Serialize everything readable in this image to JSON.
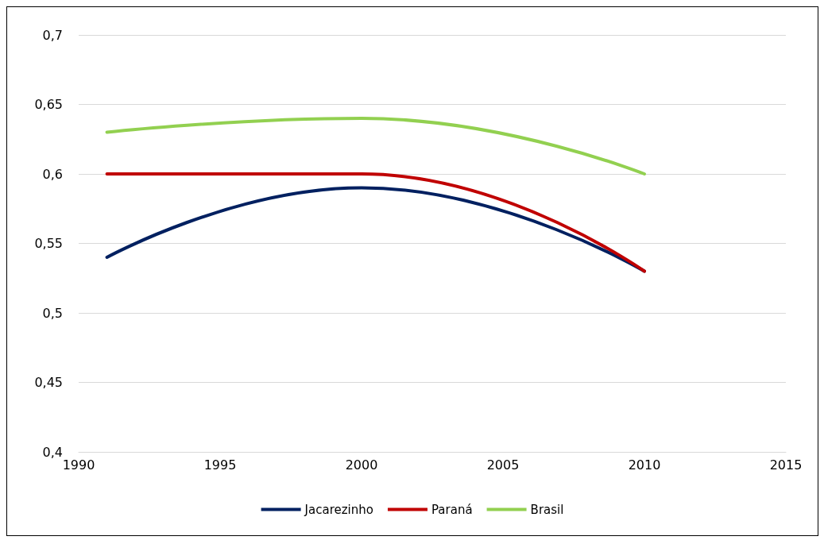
{
  "chart_data": {
    "type": "line",
    "x": [
      1991,
      2000,
      2010
    ],
    "series": [
      {
        "name": "Jacarezinho",
        "color": "#002060",
        "values": [
          0.54,
          0.59,
          0.53
        ]
      },
      {
        "name": "Paraná",
        "color": "#c00000",
        "values": [
          0.6,
          0.6,
          0.53
        ]
      },
      {
        "name": "Brasil",
        "color": "#92d050",
        "values": [
          0.63,
          0.64,
          0.6
        ]
      }
    ],
    "xlim": [
      1990,
      2015
    ],
    "xticks": [
      1990,
      1995,
      2000,
      2005,
      2010,
      2015
    ],
    "ylim": [
      0.4,
      0.7
    ],
    "yticks": [
      {
        "value": 0.4,
        "label": "0,4"
      },
      {
        "value": 0.45,
        "label": "0,45"
      },
      {
        "value": 0.5,
        "label": "0,5"
      },
      {
        "value": 0.55,
        "label": "0,55"
      },
      {
        "value": 0.6,
        "label": "0,6"
      },
      {
        "value": 0.65,
        "label": "0,65"
      },
      {
        "value": 0.7,
        "label": "0,7"
      }
    ],
    "grid": "y",
    "legend": "bottom",
    "marker": "none",
    "line_style": "solid"
  }
}
